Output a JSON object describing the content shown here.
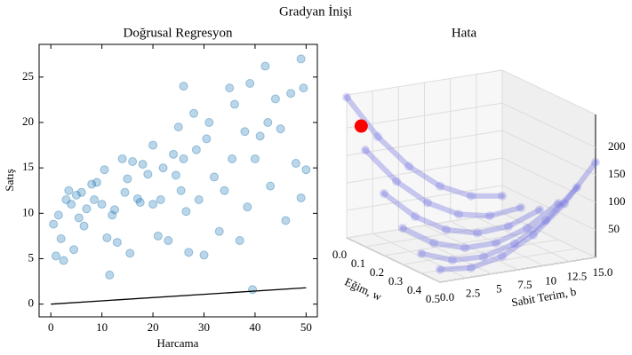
{
  "title": "Gradyan İnişi",
  "chart_data": [
    {
      "type": "scatter",
      "title": "Doğrusal Regresyon",
      "x_label": "Harcama",
      "y_label": "Satış",
      "xlim": [
        -2.3,
        52.2
      ],
      "ylim": [
        -1.4,
        28.6
      ],
      "xticks": [
        0,
        10,
        20,
        30,
        40,
        50
      ],
      "yticks": [
        0,
        5,
        10,
        15,
        20,
        25
      ],
      "color": "#1f77b4",
      "x": [
        0.5,
        1,
        1.5,
        2,
        2.5,
        3,
        3.5,
        4,
        4.5,
        5,
        5.5,
        6,
        6.5,
        7,
        8,
        8.5,
        9,
        10,
        10.5,
        11,
        11.5,
        12,
        12.5,
        13,
        14,
        14.5,
        15,
        15.5,
        16,
        17,
        18,
        19,
        20,
        21,
        21.5,
        22,
        23,
        24,
        25,
        25.5,
        26,
        26.5,
        27,
        28,
        28.5,
        29,
        30,
        30.5,
        31,
        32,
        33,
        34,
        35,
        35.5,
        36,
        37,
        38,
        38.5,
        39,
        39.5,
        40,
        41,
        42,
        42.5,
        43,
        44,
        45,
        46,
        47,
        48,
        49,
        49.5,
        50,
        49,
        26,
        20,
        24.5,
        17.5
      ],
      "values": [
        8.8,
        5.3,
        9.8,
        7.2,
        4.8,
        11.5,
        12.5,
        11,
        6,
        12,
        9.5,
        12.3,
        8.6,
        10.5,
        13.2,
        11.5,
        13.4,
        11,
        14.8,
        7.3,
        3.2,
        9.8,
        10.4,
        6.8,
        16,
        12.3,
        13.8,
        5.6,
        15.7,
        11.6,
        15.4,
        14.3,
        17.5,
        7.5,
        11.5,
        15,
        7,
        16.5,
        19.5,
        12.5,
        16,
        10.2,
        5.7,
        21,
        17,
        11.5,
        5.4,
        18.2,
        20,
        14,
        8,
        12.5,
        23.8,
        16,
        22,
        7,
        19,
        10.7,
        24.3,
        1.6,
        16,
        18.5,
        26.2,
        20,
        13,
        22.6,
        19.3,
        9.2,
        23.2,
        15.5,
        27,
        23.8,
        14.8,
        11.7,
        24,
        11,
        14.2,
        11.2
      ],
      "line": {
        "x": [
          0,
          50
        ],
        "values": [
          0,
          1.8
        ],
        "color": "#000000"
      }
    },
    {
      "type": "surface3d",
      "title": "Hata",
      "x_label": "Eğim, w",
      "y_label": "Sabit Terim, b",
      "xlim": [
        0,
        0.5
      ],
      "ylim": [
        0,
        15
      ],
      "zlim": [
        0,
        260
      ],
      "xticks": [
        {
          "value": 0,
          "label": "0.0"
        },
        {
          "value": 0.1,
          "label": "0.1"
        },
        {
          "value": 0.2,
          "label": "0.2"
        },
        {
          "value": 0.3,
          "label": "0.3"
        },
        {
          "value": 0.4,
          "label": "0.4"
        },
        {
          "value": 0.5,
          "label": "0.5"
        }
      ],
      "yticks": [
        {
          "value": 0,
          "label": "0.0"
        },
        2.5,
        5,
        7.5,
        10,
        12.5,
        {
          "value": 15,
          "label": "15.0"
        }
      ],
      "zticks": [
        50,
        100,
        150,
        200
      ],
      "color": "#6a6ae0",
      "w": [
        0,
        0.1,
        0.2,
        0.3,
        0.4,
        0.5
      ],
      "b": [
        0,
        3,
        6,
        9,
        12,
        15
      ],
      "loss": [
        [
          256,
          175,
          112,
          67,
          40,
          31
        ],
        [
          176,
          110,
          62,
          32,
          20,
          26
        ],
        [
          113,
          62,
          29,
          14,
          17,
          38
        ],
        [
          66,
          30,
          12,
          12,
          30,
          66
        ],
        [
          36,
          15,
          12,
          27,
          60,
          111
        ],
        [
          23,
          17,
          29,
          59,
          107,
          173
        ]
      ],
      "start": {
        "w": 0.05,
        "b": 0.5,
        "loss": 210,
        "color": "#ff0000"
      }
    }
  ]
}
